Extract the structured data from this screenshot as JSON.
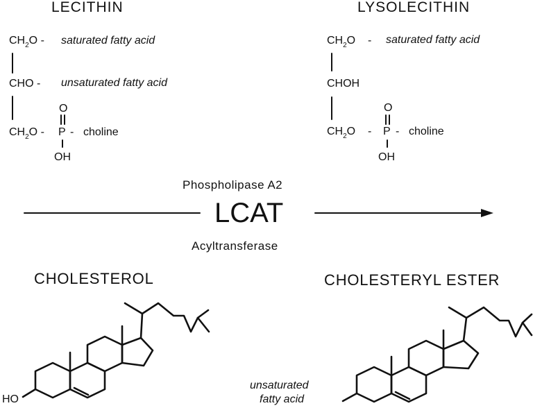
{
  "lecithin": {
    "title": "LECITHIN",
    "row1": {
      "group": "CH",
      "sub": "2",
      "tail": "O -",
      "chain": "saturated fatty acid"
    },
    "row2": {
      "group": "CHO -",
      "chain": "unsaturated fatty acid"
    },
    "row3": {
      "group": "CH",
      "sub": "2",
      "tail": "O -",
      "atom": "P",
      "dash": "-",
      "rest": "choline"
    },
    "oxo": "O",
    "hydroxyl": "OH"
  },
  "lysolecithin": {
    "title": "LYSOLECITHIN",
    "row1": {
      "group": "CH",
      "sub": "2",
      "tail": "O",
      "dash": "-",
      "chain": "saturated fatty acid"
    },
    "row2": {
      "group": "CHOH"
    },
    "row3": {
      "group": "CH",
      "sub": "2",
      "tail": "O",
      "dash": "-",
      "atom": "P",
      "dash2": "-",
      "rest": "choline"
    },
    "oxo": "O",
    "hydroxyl": "OH"
  },
  "reaction": {
    "enzyme_top": "Phospholipase A2",
    "enzyme_name": "LCAT",
    "enzyme_bottom": "Acyltransferase"
  },
  "cholesterol": {
    "title": "CHOLESTEROL",
    "hydroxyl": "HO"
  },
  "ester": {
    "title": "CHOLESTERYL ESTER",
    "label_line1": "unsaturated",
    "label_line2": "fatty acid"
  }
}
